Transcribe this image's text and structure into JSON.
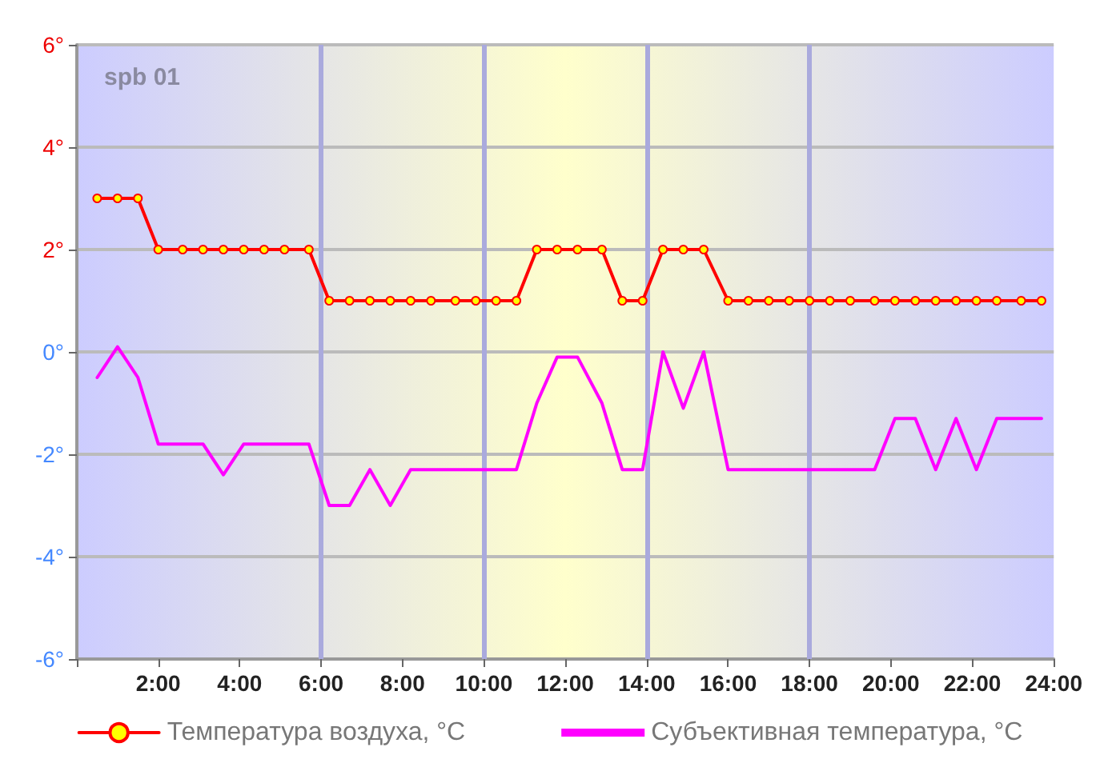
{
  "chart_data": {
    "type": "line",
    "title": "spb 01",
    "x": [
      0.5,
      1.0,
      1.5,
      2.0,
      2.6,
      3.1,
      3.6,
      4.1,
      4.6,
      5.1,
      5.7,
      6.2,
      6.7,
      7.2,
      7.7,
      8.2,
      8.7,
      9.3,
      9.8,
      10.3,
      10.8,
      11.3,
      11.8,
      12.3,
      12.9,
      13.4,
      13.9,
      14.4,
      14.9,
      15.4,
      16.0,
      16.5,
      17.0,
      17.5,
      18.0,
      18.5,
      19.0,
      19.6,
      20.1,
      20.6,
      21.1,
      21.6,
      22.1,
      22.6,
      23.2,
      23.7
    ],
    "series": [
      {
        "name": "Температура воздуха, °C",
        "color": "#ff0000",
        "marker": "circle",
        "values": [
          3,
          3,
          3,
          2,
          2,
          2,
          2,
          2,
          2,
          2,
          2,
          1,
          1,
          1,
          1,
          1,
          1,
          1,
          1,
          1,
          1,
          2,
          2,
          2,
          2,
          1,
          1,
          2,
          2,
          2,
          1,
          1,
          1,
          1,
          1,
          1,
          1,
          1,
          1,
          1,
          1,
          1,
          1,
          1,
          1,
          1
        ]
      },
      {
        "name": "Субъективная температура, °C",
        "color": "#ff00ff",
        "marker": "none",
        "values": [
          -0.5,
          0.1,
          -0.5,
          -1.8,
          -1.8,
          -1.8,
          -2.4,
          -1.8,
          -1.8,
          -1.8,
          -1.8,
          -3.0,
          -3.0,
          -2.3,
          -3.0,
          -2.3,
          -2.3,
          -2.3,
          -2.3,
          -2.3,
          -2.3,
          -1.0,
          -0.1,
          -0.1,
          -1.0,
          -2.3,
          -2.3,
          0.0,
          -1.1,
          0.0,
          -2.3,
          -2.3,
          -2.3,
          -2.3,
          -2.3,
          -2.3,
          -2.3,
          -2.3,
          -1.3,
          -1.3,
          -2.3,
          -1.3,
          -2.3,
          -1.3,
          -1.3,
          -1.3
        ]
      }
    ],
    "xlim": [
      0,
      24
    ],
    "xticks": [
      {
        "value": 0,
        "label": null
      },
      {
        "value": 2,
        "label": "2:00"
      },
      {
        "value": 4,
        "label": "4:00"
      },
      {
        "value": 6,
        "label": "6:00"
      },
      {
        "value": 8,
        "label": "8:00"
      },
      {
        "value": 10,
        "label": "10:00"
      },
      {
        "value": 12,
        "label": "12:00"
      },
      {
        "value": 14,
        "label": "14:00"
      },
      {
        "value": 16,
        "label": "16:00"
      },
      {
        "value": 18,
        "label": "18:00"
      },
      {
        "value": 20,
        "label": "20:00"
      },
      {
        "value": 22,
        "label": "22:00"
      },
      {
        "value": 24,
        "label": "24:00"
      }
    ],
    "ylim": [
      -6,
      6
    ],
    "yticks": [
      {
        "value": -6,
        "label": "-6°"
      },
      {
        "value": -4,
        "label": "-4°"
      },
      {
        "value": -2,
        "label": "-2°"
      },
      {
        "value": 0,
        "label": "0°"
      },
      {
        "value": 2,
        "label": "2°"
      },
      {
        "value": 4,
        "label": "4°"
      },
      {
        "value": 6,
        "label": "6°"
      }
    ],
    "ref_lines": [
      {
        "axis": "x",
        "value": 6,
        "color": "#aaaadd"
      },
      {
        "axis": "x",
        "value": 10,
        "color": "#aaaadd"
      },
      {
        "axis": "x",
        "value": 14,
        "color": "#aaaadd"
      },
      {
        "axis": "x",
        "value": 18,
        "color": "#aaaadd"
      }
    ],
    "grid": "y",
    "legend": "bottom",
    "line_style": "solid"
  }
}
